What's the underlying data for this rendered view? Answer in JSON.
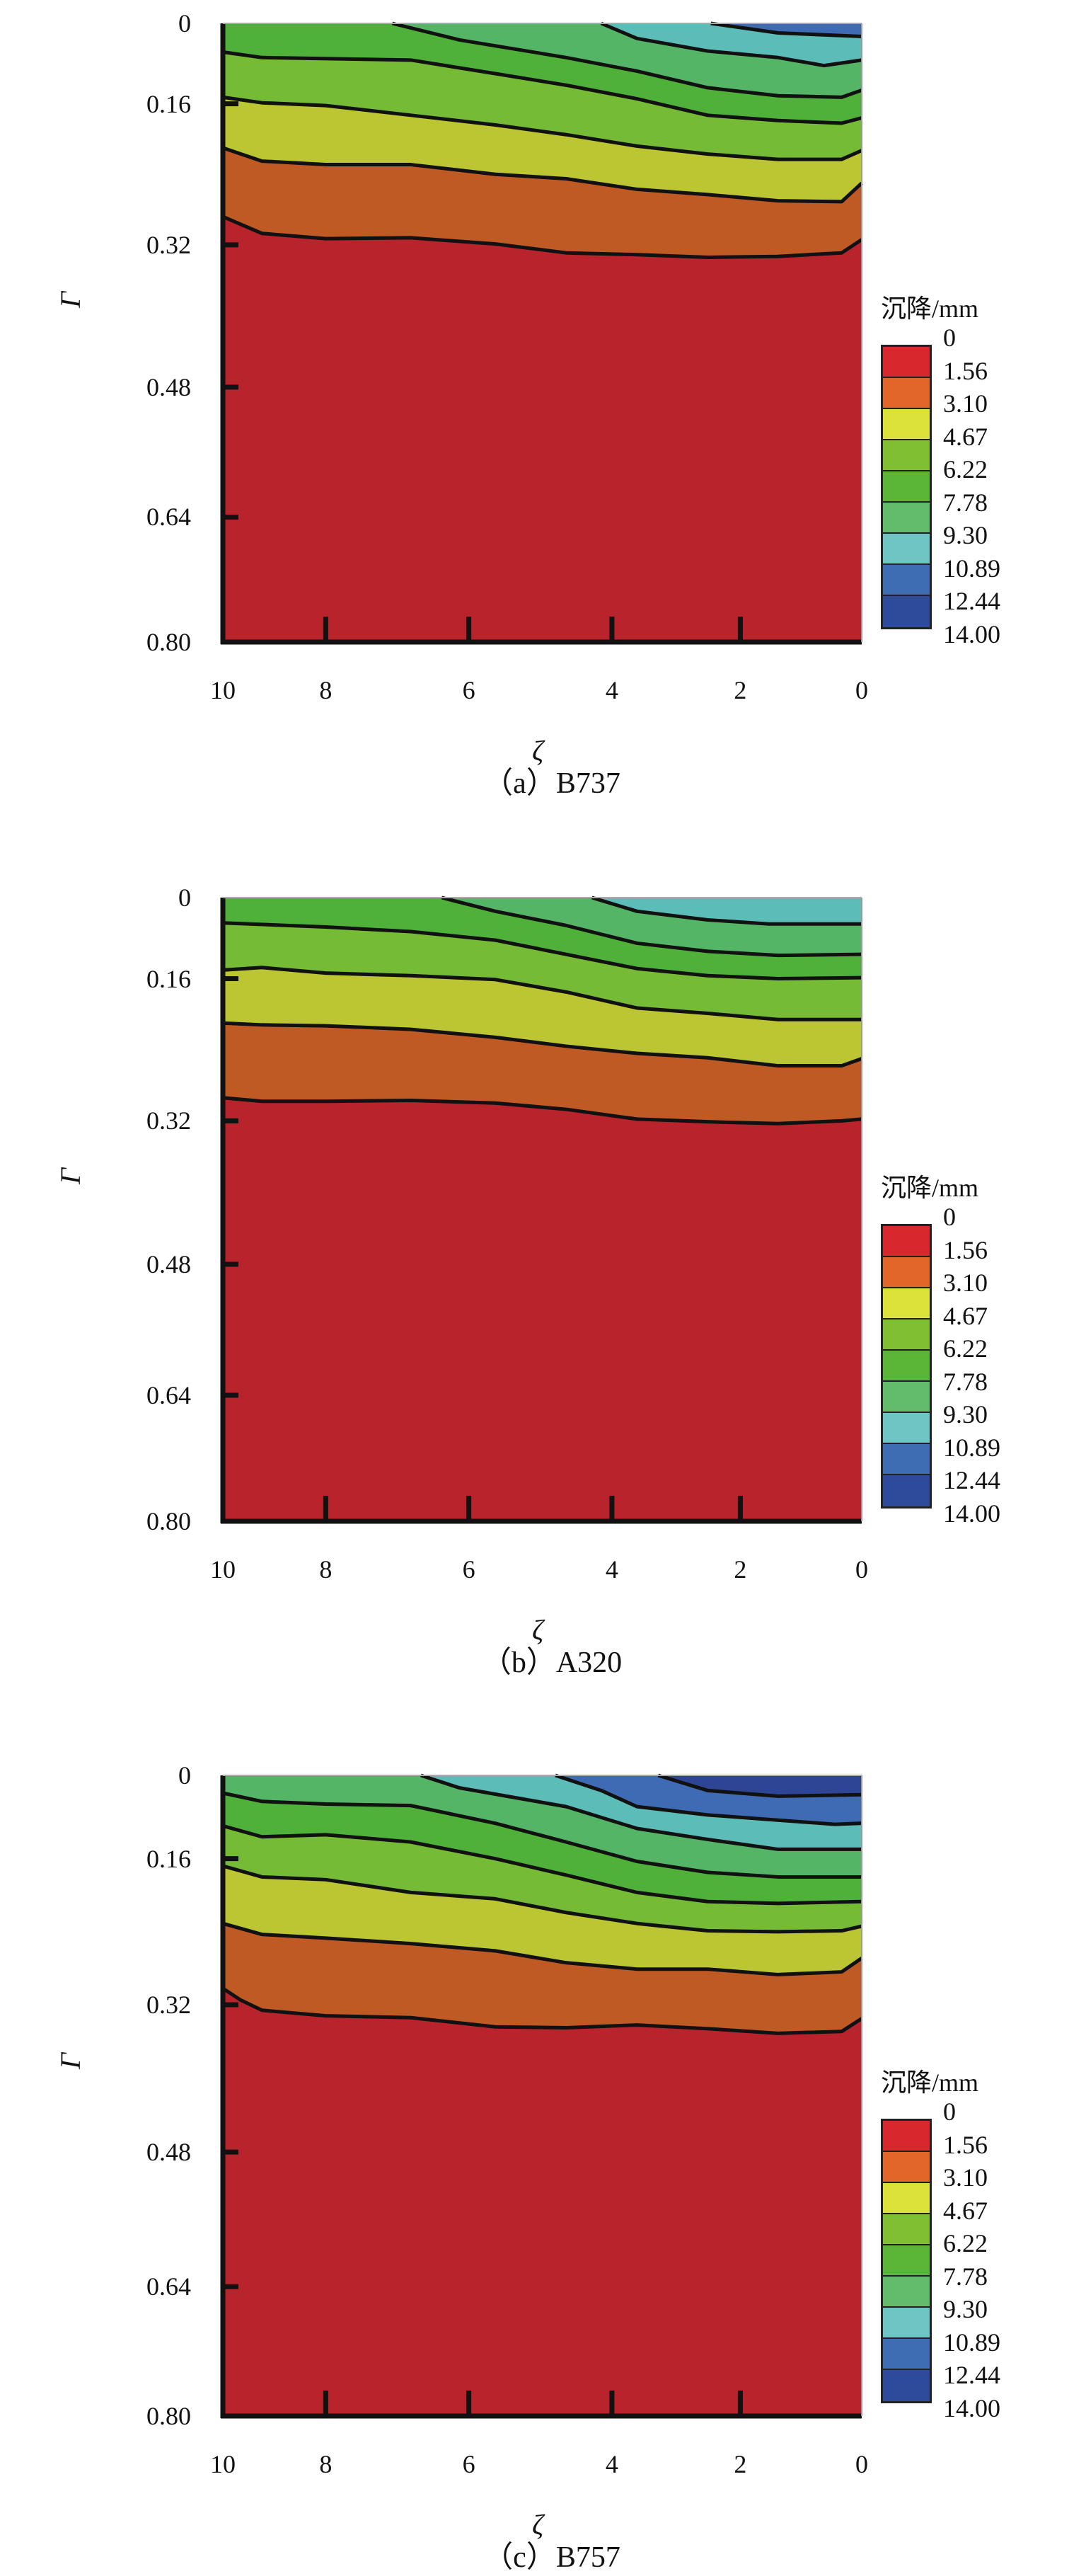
{
  "chart_data": [
    {
      "type": "contour",
      "caption": "（a）B737",
      "xlabel": "ζ",
      "ylabel": "Γ",
      "x_ticks": [
        "10",
        "8",
        "6",
        "4",
        "2",
        "0"
      ],
      "y_ticks": [
        "0",
        "0.16",
        "0.32",
        "0.48",
        "0.64",
        "0.80"
      ],
      "xlim": [
        10,
        0
      ],
      "ylim": [
        0,
        0.8
      ],
      "legend_title": "沉降/mm",
      "contours": [
        {
          "band": 1,
          "points": [
            [
              10,
              0.288
            ],
            [
              9.24,
              0.307
            ],
            [
              8,
              0.313
            ],
            [
              6.81,
              0.312
            ],
            [
              5.63,
              0.319
            ],
            [
              4.64,
              0.329
            ],
            [
              3.61,
              0.331
            ],
            [
              2.51,
              0.334
            ],
            [
              1.38,
              0.333
            ],
            [
              0.33,
              0.329
            ],
            [
              0,
              0.314
            ]
          ]
        },
        {
          "band": 2,
          "points": [
            [
              10,
              0.21
            ],
            [
              9.24,
              0.225
            ],
            [
              8,
              0.229
            ],
            [
              6.81,
              0.229
            ],
            [
              5.63,
              0.24
            ],
            [
              4.64,
              0.245
            ],
            [
              3.61,
              0.257
            ],
            [
              2.51,
              0.263
            ],
            [
              1.38,
              0.27
            ],
            [
              0.33,
              0.271
            ],
            [
              0,
              0.25
            ]
          ]
        },
        {
          "band": 3,
          "points": [
            [
              10,
              0.147
            ],
            [
              9.24,
              0.158
            ],
            [
              8,
              0.162
            ],
            [
              6.81,
              0.173
            ],
            [
              5.63,
              0.184
            ],
            [
              4.64,
              0.195
            ],
            [
              3.61,
              0.208
            ],
            [
              2.51,
              0.217
            ],
            [
              1.38,
              0.223
            ],
            [
              0.33,
              0.223
            ],
            [
              0,
              0.213
            ]
          ]
        },
        {
          "band": 4,
          "points": [
            [
              10,
              0.057
            ],
            [
              9.24,
              0.068
            ],
            [
              6.81,
              0.073
            ],
            [
              5.63,
              0.1
            ],
            [
              4.64,
              0.123
            ],
            [
              3.61,
              0.15
            ],
            [
              2.51,
              0.173
            ],
            [
              1.38,
              0.179
            ],
            [
              0.33,
              0.182
            ],
            [
              0,
              0.176
            ]
          ]
        },
        {
          "band": 5,
          "points": [
            [
              7.07,
              0
            ],
            [
              6.13,
              0.033
            ],
            [
              4.64,
              0.068
            ],
            [
              3.61,
              0.095
            ],
            [
              2.51,
              0.128
            ],
            [
              1.38,
              0.144
            ],
            [
              0.33,
              0.147
            ],
            [
              0,
              0.133
            ]
          ]
        },
        {
          "band": 6,
          "points": [
            [
              4.15,
              0
            ],
            [
              3.61,
              0.03
            ],
            [
              2.51,
              0.055
            ],
            [
              1.38,
              0.068
            ],
            [
              0.62,
              0.084
            ],
            [
              0,
              0.073
            ]
          ]
        },
        {
          "band": 7,
          "points": [
            [
              2.46,
              0
            ],
            [
              1.38,
              0.019
            ],
            [
              0,
              0.026
            ]
          ]
        }
      ]
    },
    {
      "type": "contour",
      "caption": "（b）A320",
      "xlabel": "ζ",
      "ylabel": "Γ",
      "x_ticks": [
        "10",
        "8",
        "6",
        "4",
        "2",
        "0"
      ],
      "y_ticks": [
        "0",
        "0.16",
        "0.32",
        "0.48",
        "0.64",
        "0.80"
      ],
      "xlim": [
        10,
        0
      ],
      "ylim": [
        0,
        0.8
      ],
      "legend_title": "沉降/mm",
      "contours": [
        {
          "band": 1,
          "points": [
            [
              10,
              0.294
            ],
            [
              9.24,
              0.298
            ],
            [
              8,
              0.298
            ],
            [
              6.81,
              0.297
            ],
            [
              5.63,
              0.3
            ],
            [
              4.64,
              0.307
            ],
            [
              3.61,
              0.318
            ],
            [
              2.51,
              0.321
            ],
            [
              1.38,
              0.323
            ],
            [
              0.33,
              0.32
            ],
            [
              0,
              0.318
            ]
          ]
        },
        {
          "band": 2,
          "points": [
            [
              10,
              0.21
            ],
            [
              9.24,
              0.212
            ],
            [
              8,
              0.213
            ],
            [
              6.81,
              0.217
            ],
            [
              5.63,
              0.226
            ],
            [
              4.64,
              0.236
            ],
            [
              3.61,
              0.244
            ],
            [
              2.51,
              0.249
            ],
            [
              1.38,
              0.258
            ],
            [
              0.33,
              0.258
            ],
            [
              0,
              0.25
            ]
          ]
        },
        {
          "band": 3,
          "points": [
            [
              10,
              0.143
            ],
            [
              9.24,
              0.138
            ],
            [
              8,
              0.149
            ],
            [
              6.81,
              0.154
            ],
            [
              5.63,
              0.161
            ],
            [
              4.64,
              0.175
            ],
            [
              3.61,
              0.193
            ],
            [
              2.51,
              0.199
            ],
            [
              1.38,
              0.206
            ],
            [
              0,
              0.206
            ]
          ]
        },
        {
          "band": 4,
          "points": [
            [
              10,
              0.05
            ],
            [
              8,
              0.058
            ],
            [
              6.81,
              0.067
            ],
            [
              5.63,
              0.084
            ],
            [
              4.64,
              0.112
            ],
            [
              3.61,
              0.14
            ],
            [
              2.51,
              0.154
            ],
            [
              1.38,
              0.16
            ],
            [
              0,
              0.158
            ]
          ]
        },
        {
          "band": 5,
          "points": [
            [
              6.38,
              0
            ],
            [
              5.63,
              0.027
            ],
            [
              4.64,
              0.055
            ],
            [
              3.61,
              0.09
            ],
            [
              2.51,
              0.106
            ],
            [
              1.38,
              0.114
            ],
            [
              0,
              0.112
            ]
          ]
        },
        {
          "band": 6,
          "points": [
            [
              4.28,
              0
            ],
            [
              3.61,
              0.027
            ],
            [
              2.51,
              0.044
            ],
            [
              1.53,
              0.052
            ],
            [
              0,
              0.052
            ]
          ]
        }
      ]
    },
    {
      "type": "contour",
      "caption": "（c）B757",
      "xlabel": "ζ",
      "ylabel": "Γ",
      "x_ticks": [
        "10",
        "8",
        "6",
        "4",
        "2",
        "0"
      ],
      "y_ticks": [
        "0",
        "0.16",
        "0.32",
        "0.48",
        "0.64",
        "0.80"
      ],
      "xlim": [
        10,
        0
      ],
      "ylim": [
        0,
        0.8
      ],
      "legend_title": "沉降/mm",
      "contours": [
        {
          "band": 1,
          "points": [
            [
              10,
              0.302
            ],
            [
              9.65,
              0.315
            ],
            [
              9.24,
              0.326
            ],
            [
              8,
              0.332
            ],
            [
              6.81,
              0.334
            ],
            [
              5.63,
              0.344
            ],
            [
              4.64,
              0.345
            ],
            [
              3.61,
              0.342
            ],
            [
              2.51,
              0.346
            ],
            [
              1.38,
              0.351
            ],
            [
              0.33,
              0.349
            ],
            [
              0,
              0.335
            ]
          ]
        },
        {
          "band": 2,
          "points": [
            [
              10,
              0.231
            ],
            [
              9.24,
              0.243
            ],
            [
              8,
              0.247
            ],
            [
              6.81,
              0.253
            ],
            [
              5.63,
              0.261
            ],
            [
              4.64,
              0.274
            ],
            [
              3.61,
              0.281
            ],
            [
              2.51,
              0.281
            ],
            [
              1.38,
              0.287
            ],
            [
              0.33,
              0.284
            ],
            [
              0,
              0.269
            ]
          ]
        },
        {
          "band": 3,
          "points": [
            [
              10,
              0.168
            ],
            [
              9.24,
              0.18
            ],
            [
              8,
              0.183
            ],
            [
              6.81,
              0.197
            ],
            [
              5.63,
              0.204
            ],
            [
              4.64,
              0.219
            ],
            [
              3.61,
              0.231
            ],
            [
              2.51,
              0.239
            ],
            [
              1.38,
              0.24
            ],
            [
              0.33,
              0.239
            ],
            [
              0,
              0.234
            ]
          ]
        },
        {
          "band": 4,
          "points": [
            [
              10,
              0.097
            ],
            [
              9.24,
              0.118
            ],
            [
              8,
              0.114
            ],
            [
              6.81,
              0.128
            ],
            [
              5.63,
              0.16
            ],
            [
              4.64,
              0.178
            ],
            [
              3.61,
              0.197
            ],
            [
              2.51,
              0.207
            ],
            [
              1.38,
              0.209
            ],
            [
              0,
              0.207
            ]
          ]
        },
        {
          "band": 5,
          "points": [
            [
              10,
              0.034
            ],
            [
              9.24,
              0.05
            ],
            [
              8,
              0.055
            ],
            [
              6.81,
              0.058
            ],
            [
              5.63,
              0.092
            ],
            [
              4.64,
              0.128
            ],
            [
              3.61,
              0.163
            ],
            [
              2.51,
              0.175
            ],
            [
              1.38,
              0.18
            ],
            [
              0,
              0.18
            ]
          ]
        },
        {
          "band": 6,
          "points": [
            [
              6.67,
              0
            ],
            [
              6.13,
              0.024
            ],
            [
              4.64,
              0.06
            ],
            [
              3.61,
              0.102
            ],
            [
              2.51,
              0.123
            ],
            [
              1.38,
              0.142
            ],
            [
              0,
              0.142
            ]
          ]
        },
        {
          "band": 7,
          "points": [
            [
              4.79,
              0
            ],
            [
              4.15,
              0.029
            ],
            [
              3.61,
              0.06
            ],
            [
              2.51,
              0.076
            ],
            [
              1.38,
              0.086
            ],
            [
              0.44,
              0.094
            ],
            [
              0,
              0.092
            ]
          ]
        },
        {
          "band": 8,
          "points": [
            [
              3.28,
              0
            ],
            [
              2.51,
              0.029
            ],
            [
              1.38,
              0.04
            ],
            [
              0,
              0.037
            ]
          ]
        }
      ]
    }
  ],
  "legend": {
    "levels": [
      "0",
      "1.56",
      "3.10",
      "4.67",
      "6.22",
      "7.78",
      "9.30",
      "10.89",
      "12.44",
      "14.00"
    ],
    "legend_colors": [
      "#d8272d",
      "#e2662a",
      "#dde23a",
      "#80bf31",
      "#5bb536",
      "#62bc6c",
      "#6fc4c4",
      "#3e6db4",
      "#2e4a9a"
    ],
    "plot_colors": [
      "#b9232c",
      "#c05a25",
      "#bcc632",
      "#76bb36",
      "#4fb03a",
      "#55b567",
      "#5bbcb8",
      "#3f6bb5",
      "#2e4595"
    ]
  }
}
